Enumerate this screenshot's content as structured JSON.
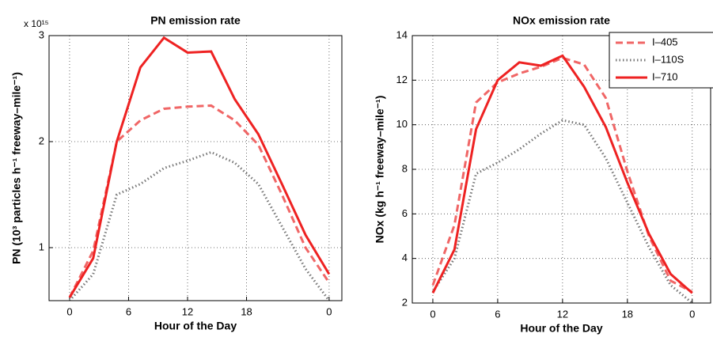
{
  "chart_data": [
    {
      "type": "line",
      "title": "PN emission rate",
      "multiplier": "x 10¹⁵",
      "x_label": "Hour of the Day",
      "y_label": "PN (10³ particles h⁻¹ freeway–mile⁻¹)",
      "x": [
        1,
        2,
        3,
        4,
        5,
        6,
        7,
        8,
        9,
        10,
        11,
        12
      ],
      "xlim": [
        0.13,
        12.54
      ],
      "xticks": [
        {
          "value": 1,
          "label": "0"
        },
        {
          "value": 3.5,
          "label": "6"
        },
        {
          "value": 6,
          "label": "12"
        },
        {
          "value": 8.5,
          "label": "18"
        },
        {
          "value": 12,
          "label": "0"
        }
      ],
      "ylim": [
        0.5,
        3
      ],
      "yticks": [
        1,
        2,
        3
      ],
      "grid": true,
      "series": [
        {
          "name": "I–405",
          "color": "#f06666",
          "style": "dashed",
          "values": [
            0.53,
            0.97,
            2.0,
            2.2,
            2.31,
            2.33,
            2.34,
            2.2,
            1.97,
            1.5,
            1.0,
            0.67
          ]
        },
        {
          "name": "I–110S",
          "color": "#777777",
          "style": "dotted",
          "values": [
            0.5,
            0.75,
            1.5,
            1.6,
            1.75,
            1.82,
            1.9,
            1.8,
            1.6,
            1.2,
            0.8,
            0.5
          ]
        },
        {
          "name": "I–710",
          "color": "#ee2222",
          "style": "solid",
          "values": [
            0.53,
            0.9,
            2.0,
            2.7,
            2.98,
            2.84,
            2.85,
            2.4,
            2.07,
            1.6,
            1.12,
            0.75
          ]
        }
      ]
    },
    {
      "type": "line",
      "title": "NOx emission rate",
      "x_label": "Hour of the Day",
      "y_label": "NOx (kg h⁻¹ freeway–mile⁻¹)",
      "x": [
        0,
        2,
        4,
        6,
        8,
        10,
        12,
        14,
        16,
        18,
        20,
        22,
        24
      ],
      "xlim": [
        -1.9,
        25.7
      ],
      "xticks": [
        0,
        6,
        12,
        18,
        {
          "value": 24,
          "label": "0"
        }
      ],
      "ylim": [
        2,
        14
      ],
      "yticks": [
        2,
        4,
        6,
        8,
        10,
        12,
        14
      ],
      "grid": true,
      "legend": "top-right",
      "series": [
        {
          "name": "I–405",
          "color": "#f06666",
          "style": "dashed",
          "values": [
            2.8,
            5.5,
            11.0,
            11.9,
            12.3,
            12.6,
            13.0,
            12.7,
            11.2,
            7.9,
            5.0,
            3.0,
            2.5
          ]
        },
        {
          "name": "I–110S",
          "color": "#777777",
          "style": "dotted",
          "values": [
            2.5,
            4.0,
            7.8,
            8.3,
            8.9,
            9.6,
            10.2,
            10.0,
            8.5,
            6.5,
            4.5,
            2.8,
            2.0
          ]
        },
        {
          "name": "I–710",
          "color": "#ee2222",
          "style": "solid",
          "values": [
            2.45,
            4.4,
            9.8,
            12.0,
            12.8,
            12.65,
            13.1,
            11.7,
            9.9,
            7.4,
            5.1,
            3.3,
            2.45
          ]
        }
      ]
    }
  ]
}
